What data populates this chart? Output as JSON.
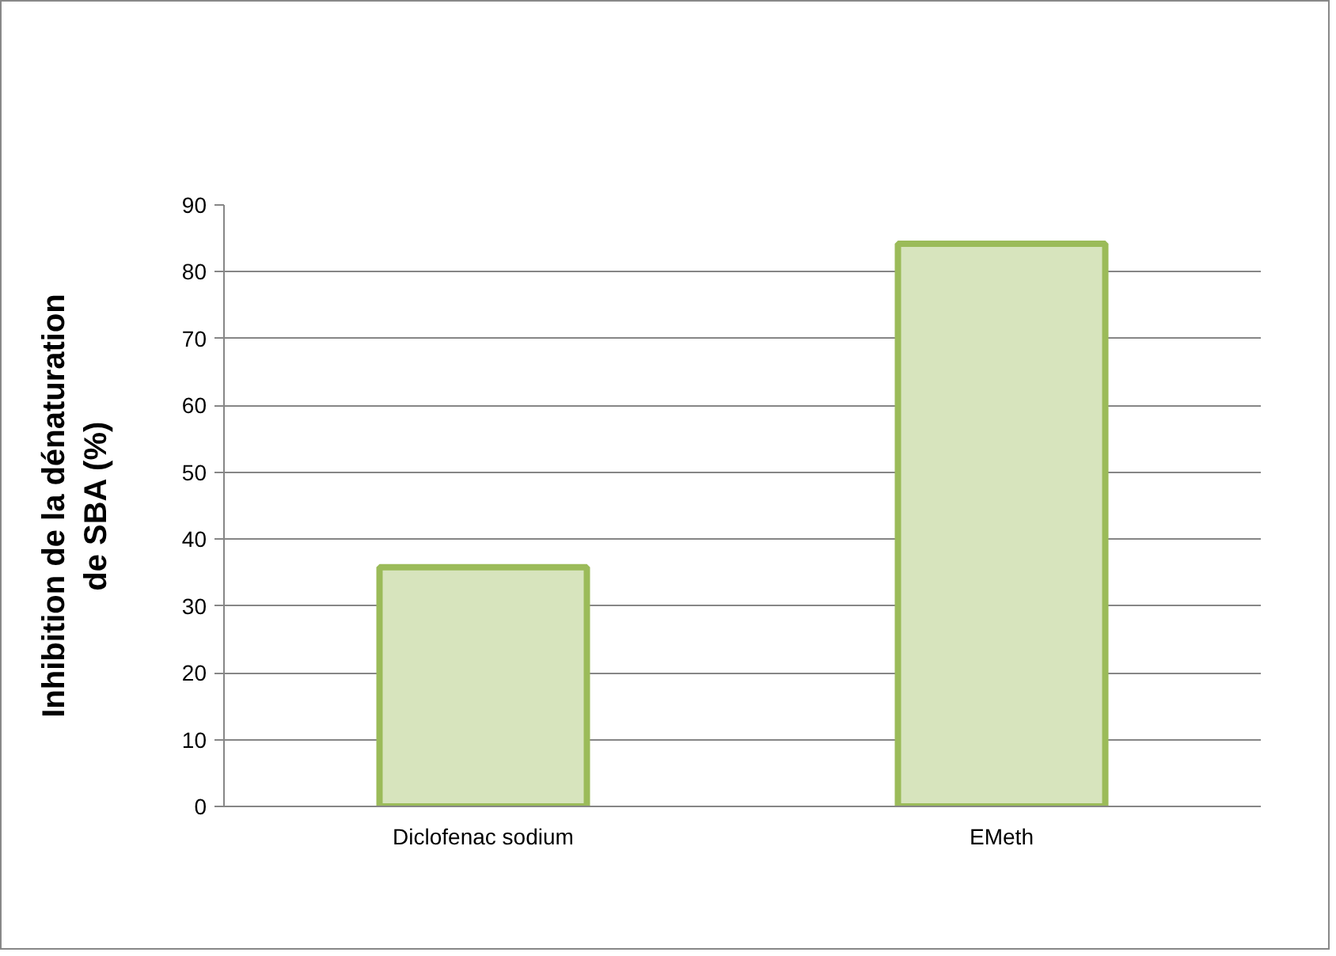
{
  "chart_data": {
    "type": "bar",
    "ylabel": "Inhibition de la dénaturation de SBA (%)",
    "categories": [
      "Diclofenac sodium",
      "EMeth"
    ],
    "values": [
      35.8,
      84.2
    ],
    "color": "#d7e4bd",
    "ylim": [
      0,
      90
    ],
    "yticks": [
      0,
      10,
      20,
      30,
      40,
      50,
      60,
      70,
      80,
      90
    ],
    "grid": "y"
  }
}
